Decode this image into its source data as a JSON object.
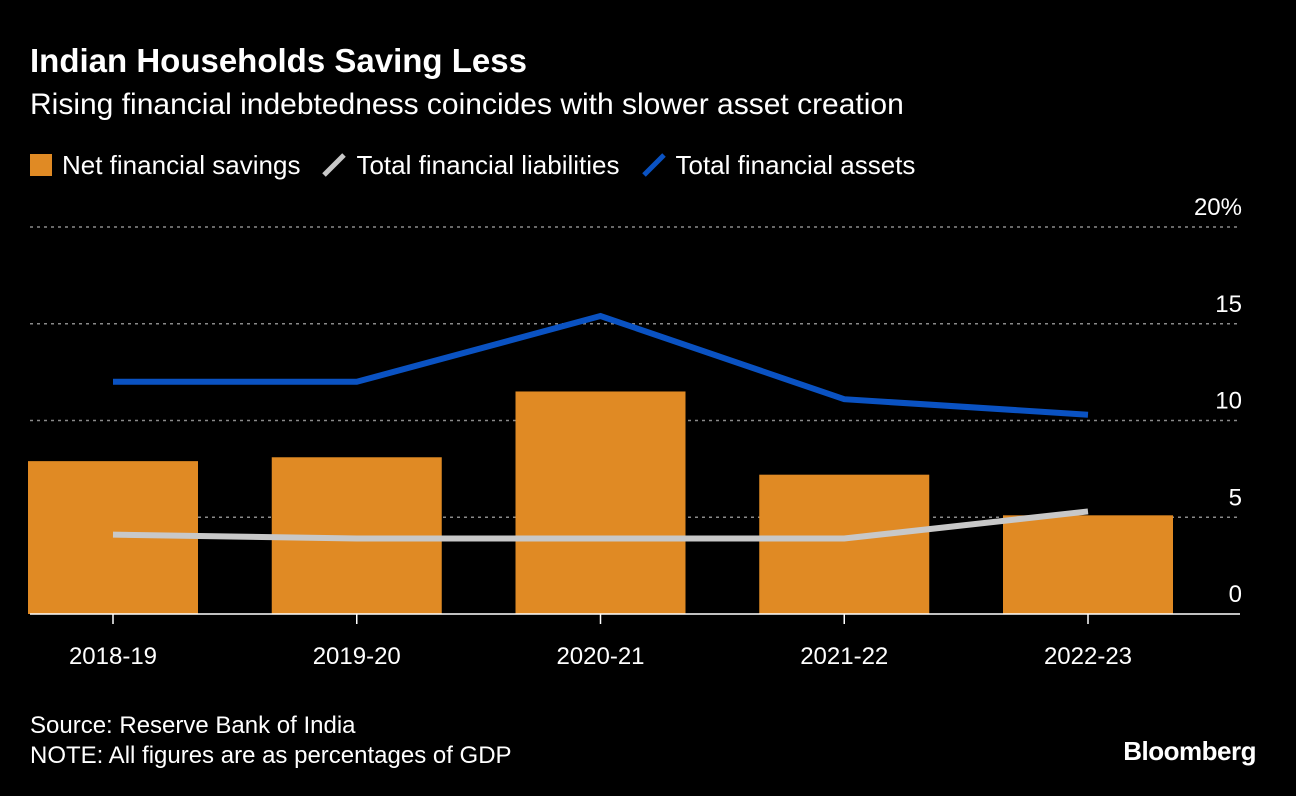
{
  "header": {
    "title": "Indian Households Saving Less",
    "subtitle": "Rising financial indebtedness coincides with slower asset creation"
  },
  "legend": [
    {
      "label": "Net financial savings",
      "color": "#E08A24",
      "shape": "box"
    },
    {
      "label": "Total financial liabilities",
      "color": "#C8C8C8",
      "shape": "line"
    },
    {
      "label": "Total financial assets",
      "color": "#0A52C2",
      "shape": "line"
    }
  ],
  "footer": {
    "source": "Source: Reserve Bank of India",
    "note": "NOTE: All figures are as percentages of GDP",
    "brand": "Bloomberg"
  },
  "chart_data": {
    "type": "bar",
    "categories": [
      "2018-19",
      "2019-20",
      "2020-21",
      "2021-22",
      "2022-23"
    ],
    "series": [
      {
        "name": "Net financial savings",
        "type": "bar",
        "color": "#E08A24",
        "values": [
          7.9,
          8.1,
          11.5,
          7.2,
          5.1
        ]
      },
      {
        "name": "Total financial liabilities",
        "type": "line",
        "color": "#C8C8C8",
        "values": [
          4.1,
          3.9,
          3.9,
          3.9,
          5.3
        ]
      },
      {
        "name": "Total financial assets",
        "type": "line",
        "color": "#0A52C2",
        "values": [
          12.0,
          12.0,
          15.4,
          11.1,
          10.3
        ]
      }
    ],
    "yticks": [
      "0",
      "5",
      "10",
      "15",
      "20%"
    ],
    "ylim": [
      0,
      20
    ],
    "grid": true,
    "yaxis_position": "right",
    "legend_position": "top-left"
  }
}
